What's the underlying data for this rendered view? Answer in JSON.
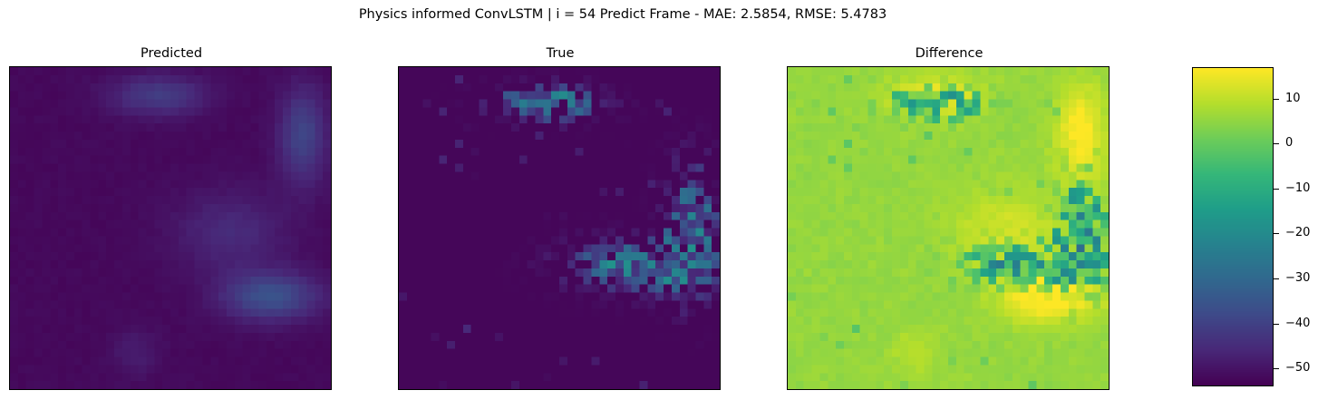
{
  "chart_data": {
    "type": "heatmap",
    "title": "Physics informed ConvLSTM | i = 54 Predict Frame - MAE: 2.5854, RMSE: 5.4783",
    "metrics": {
      "frame_index": 54,
      "MAE": 2.5854,
      "RMSE": 5.4783
    },
    "panels": [
      {
        "name": "predicted",
        "title": "Predicted",
        "value_range": [
          -53,
          -29
        ]
      },
      {
        "name": "true",
        "title": "True",
        "value_range": [
          -53,
          -12
        ]
      },
      {
        "name": "difference",
        "title": "Difference",
        "value_range": [
          -53,
          17
        ]
      }
    ],
    "grid_size": [
      40,
      40
    ],
    "colormap": "viridis",
    "colorbar": {
      "range": [
        -54,
        17
      ],
      "ticks": [
        10,
        0,
        -10,
        -20,
        -30,
        -40,
        -50
      ],
      "tick_labels": [
        "10",
        "0",
        "−10",
        "−20",
        "−30",
        "−40",
        "−50"
      ]
    },
    "axes_ticks": false
  }
}
